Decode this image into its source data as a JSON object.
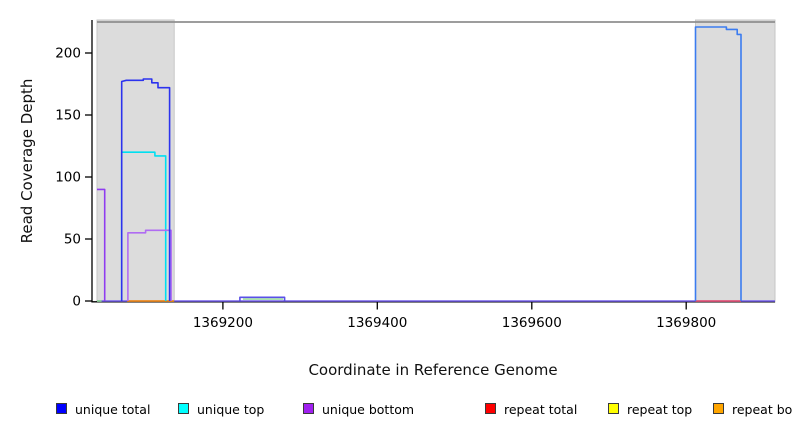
{
  "figure": {
    "background": "#ffffff"
  },
  "chart_data": {
    "type": "line",
    "title": "",
    "xlabel": "Coordinate in Reference Genome",
    "ylabel": "Read Coverage Depth",
    "xlim": [
      1369037,
      1369915
    ],
    "ylim": [
      0,
      225
    ],
    "x_ticks": [
      1369200,
      1369400,
      1369600,
      1369800
    ],
    "y_ticks": [
      0,
      50,
      100,
      150,
      200
    ],
    "grid": false,
    "legend_position": "bottom",
    "shaded_regions": [
      {
        "name": "repeat-region-left",
        "x0": 1369037,
        "x1": 1369137,
        "fill": "#dcdcdc"
      },
      {
        "name": "repeat-region-right",
        "x0": 1369812,
        "x1": 1369915,
        "fill": "#dcdcdc"
      }
    ],
    "top_boundary": {
      "depth": 225,
      "color": "#8f8f8f"
    },
    "zero_baseline_color": "#7660ee",
    "series": [
      {
        "name": "unique total",
        "color": "#0000ff",
        "segments": [
          {
            "render_color": "#2c33ee",
            "points": [
              [
                1369069,
                0
              ],
              [
                1369069,
                177
              ],
              [
                1369075,
                178
              ],
              [
                1369097,
                178
              ],
              [
                1369097,
                179
              ],
              [
                1369108,
                179
              ],
              [
                1369108,
                176
              ],
              [
                1369116,
                176
              ],
              [
                1369116,
                172
              ],
              [
                1369131,
                172
              ],
              [
                1369131,
                0
              ]
            ]
          },
          {
            "render_color": "#5a50e8",
            "points": [
              [
                1369222,
                0
              ],
              [
                1369222,
                3
              ],
              [
                1369280,
                3
              ],
              [
                1369280,
                0
              ]
            ]
          },
          {
            "render_color": "#3b7cf0",
            "points": [
              [
                1369812,
                0
              ],
              [
                1369812,
                221
              ],
              [
                1369852,
                221
              ],
              [
                1369852,
                219
              ],
              [
                1369866,
                219
              ],
              [
                1369866,
                215
              ],
              [
                1369871,
                215
              ],
              [
                1369871,
                0
              ]
            ]
          }
        ]
      },
      {
        "name": "unique top",
        "color": "#00ffff",
        "segments": [
          {
            "render_color": "#00dff0",
            "points": [
              [
                1369069,
                0
              ],
              [
                1369069,
                120
              ],
              [
                1369112,
                120
              ],
              [
                1369112,
                117
              ],
              [
                1369126,
                117
              ],
              [
                1369126,
                0
              ]
            ]
          }
        ]
      },
      {
        "name": "unique bottom",
        "color": "#a020f0",
        "segments": [
          {
            "render_color": "#8f3cf0",
            "points": [
              [
                1369037,
                90
              ],
              [
                1369047,
                90
              ],
              [
                1369047,
                0
              ]
            ]
          },
          {
            "render_color": "#b06cf2",
            "points": [
              [
                1369077,
                0
              ],
              [
                1369077,
                55
              ],
              [
                1369100,
                55
              ],
              [
                1369100,
                57
              ],
              [
                1369133,
                57
              ],
              [
                1369133,
                0
              ]
            ]
          }
        ]
      },
      {
        "name": "repeat total",
        "color": "#ff0000",
        "segments": [
          {
            "render_color": "#f2556a",
            "points": [
              [
                1369812,
                0
              ],
              [
                1369871,
                0
              ]
            ]
          }
        ]
      },
      {
        "name": "repeat top",
        "color": "#ffff00",
        "segments": [
          {
            "render_color": "#8fdc8f",
            "points": [
              [
                1369037,
                0
              ],
              [
                1369043,
                0
              ]
            ]
          },
          {
            "render_color": "#9fe09f",
            "points": [
              [
                1369226,
                1.5
              ],
              [
                1369278,
                1.5
              ]
            ]
          }
        ]
      },
      {
        "name": "repeat bottom",
        "color": "#ffa500",
        "segments": [
          {
            "render_color": "#ff9100",
            "points": [
              [
                1369076,
                0
              ],
              [
                1369137,
                0
              ]
            ]
          }
        ]
      }
    ]
  },
  "legend": {
    "items": [
      {
        "label": "unique total",
        "color": "#0000ff"
      },
      {
        "label": "unique top",
        "color": "#00ffff"
      },
      {
        "label": "unique bottom",
        "color": "#a020f0"
      },
      {
        "label": "repeat total",
        "color": "#ff0000"
      },
      {
        "label": "repeat top",
        "color": "#ffff00"
      },
      {
        "label": "repeat bottom",
        "color": "#ffa500"
      }
    ]
  }
}
